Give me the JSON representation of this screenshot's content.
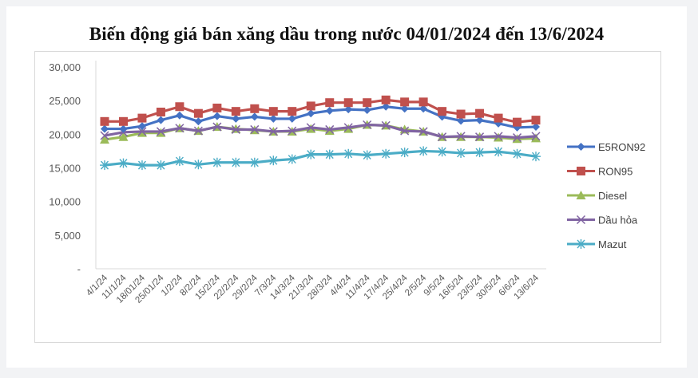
{
  "title": "Biến động giá bán xăng dầu trong nước 04/01/2024 đến 13/6/2024",
  "chart_data": {
    "type": "line",
    "title": "Biến động giá bán xăng dầu trong nước 04/01/2024 đến 13/6/2024",
    "xlabel": "",
    "ylabel": "",
    "ylim": [
      0,
      30000
    ],
    "yticks": [
      0,
      5000,
      10000,
      15000,
      20000,
      25000,
      30000
    ],
    "ytick_labels": [
      "-",
      "5,000",
      "10,000",
      "15,000",
      "20,000",
      "25,000",
      "30,000"
    ],
    "grid": false,
    "legend_position": "right",
    "categories": [
      "4/1/24",
      "11/1/24",
      "18/01/24",
      "25/01/24",
      "1/2/24",
      "8/2/24",
      "15/2/24",
      "22/2/24",
      "29/2/24",
      "7/3/24",
      "14/3/24",
      "21/3/24",
      "28/3/24",
      "4/4/24",
      "11/4/24",
      "17/4/24",
      "25/4/24",
      "2/5/24",
      "9/5/24",
      "16/5/24",
      "23/5/24",
      "30/5/24",
      "6/6/24",
      "13/6/24"
    ],
    "series": [
      {
        "name": "E5RON92",
        "color": "#4472c4",
        "marker": "diamond",
        "values": [
          20800,
          20800,
          21200,
          22100,
          22800,
          21900,
          22700,
          22300,
          22600,
          22300,
          22300,
          23100,
          23500,
          23700,
          23600,
          24100,
          23800,
          23800,
          22600,
          22000,
          22100,
          21600,
          21000,
          21100
        ]
      },
      {
        "name": "RON95",
        "color": "#c0504d",
        "marker": "square",
        "values": [
          21900,
          21900,
          22400,
          23300,
          24100,
          23100,
          23900,
          23400,
          23800,
          23400,
          23400,
          24200,
          24700,
          24700,
          24700,
          25100,
          24800,
          24800,
          23400,
          23000,
          23100,
          22400,
          21800,
          22100
        ]
      },
      {
        "name": "Diesel",
        "color": "#9bbb59",
        "marker": "triangle",
        "values": [
          19200,
          19600,
          20200,
          20200,
          20900,
          20500,
          21100,
          20800,
          20600,
          20400,
          20400,
          20800,
          20500,
          20800,
          21400,
          21300,
          20700,
          20400,
          19600,
          19600,
          19600,
          19500,
          19300,
          19400
        ]
      },
      {
        "name": "Dầu hỏa",
        "color": "#8064a2",
        "marker": "x",
        "values": [
          19800,
          20300,
          20400,
          20400,
          20900,
          20500,
          21100,
          20700,
          20700,
          20400,
          20500,
          21000,
          20700,
          21000,
          21400,
          21300,
          20500,
          20400,
          19600,
          19700,
          19600,
          19700,
          19500,
          19700
        ]
      },
      {
        "name": "Mazut",
        "color": "#4bacc6",
        "marker": "star",
        "values": [
          15400,
          15700,
          15400,
          15400,
          16000,
          15500,
          15800,
          15800,
          15800,
          16100,
          16300,
          17000,
          17000,
          17100,
          16900,
          17100,
          17300,
          17500,
          17400,
          17200,
          17300,
          17400,
          17100,
          16700
        ]
      }
    ]
  },
  "colors": {
    "page_background": "#f2f3f5",
    "card_background": "#ffffff",
    "frame_border": "#d9d9d9",
    "axis_line": "#d9d9d9",
    "tick_text": "#595959"
  }
}
